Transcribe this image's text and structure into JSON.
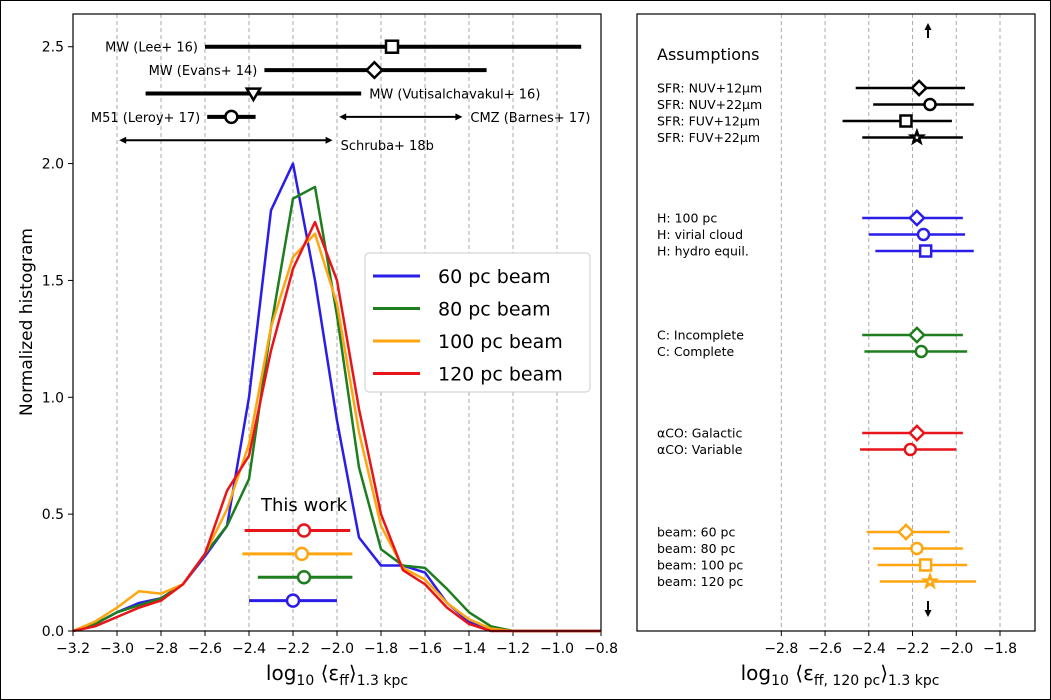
{
  "chart_data": [
    {
      "type": "line",
      "ylabel": "Normalized histogram",
      "xlabel": [
        "log",
        "10",
        " ⟨ε",
        "ff",
        "⟩",
        "1.3 kpc"
      ],
      "xlim": [
        -3.2,
        -0.8
      ],
      "ylim": [
        0,
        2.64
      ],
      "xticks": [
        {
          "value": -3.2,
          "label": "−3.2"
        },
        {
          "value": -3.0,
          "label": "−3.0"
        },
        {
          "value": -2.8,
          "label": "−2.8"
        },
        {
          "value": -2.6,
          "label": "−2.6"
        },
        {
          "value": -2.4,
          "label": "−2.4"
        },
        {
          "value": -2.2,
          "label": "−2.2"
        },
        {
          "value": -2.0,
          "label": "−2.0"
        },
        {
          "value": -1.8,
          "label": "−1.8"
        },
        {
          "value": -1.6,
          "label": "−1.6"
        },
        {
          "value": -1.4,
          "label": "−1.4"
        },
        {
          "value": -1.2,
          "label": "−1.2"
        },
        {
          "value": -1.0,
          "label": "−1.0"
        },
        {
          "value": -0.8,
          "label": "−0.8"
        }
      ],
      "yticks": [
        {
          "value": 0,
          "label": "0.0"
        },
        0.5,
        {
          "value": 1,
          "label": "1.0"
        },
        1.5,
        {
          "value": 2,
          "label": "2.0"
        },
        2.5
      ],
      "grid": "x",
      "legend_position": "center right",
      "x": [
        -3.2,
        -3.1,
        -3.0,
        -2.9,
        -2.8,
        -2.7,
        -2.6,
        -2.5,
        -2.4,
        -2.3,
        -2.2,
        -2.1,
        -2.0,
        -1.9,
        -1.8,
        -1.7,
        -1.6,
        -1.5,
        -1.4,
        -1.3,
        -1.2,
        -1.1,
        -1.0,
        -0.9,
        -0.8
      ],
      "series": [
        {
          "name": "60 pc beam",
          "color": "#2b1de8",
          "values": [
            0,
            0.03,
            0.08,
            0.12,
            0.14,
            0.2,
            0.32,
            0.45,
            1.0,
            1.8,
            2.0,
            1.5,
            0.9,
            0.4,
            0.28,
            0.28,
            0.25,
            0.12,
            0.04,
            0.01,
            0,
            0,
            0,
            0,
            0
          ],
          "estimate": {
            "value": -2.2,
            "low": -2.4,
            "high": -2.0,
            "y": 0.13
          }
        },
        {
          "name": "80 pc beam",
          "color": "#1e7d1e",
          "values": [
            0,
            0.03,
            0.08,
            0.11,
            0.14,
            0.2,
            0.33,
            0.45,
            0.65,
            1.3,
            1.85,
            1.9,
            1.35,
            0.7,
            0.35,
            0.28,
            0.27,
            0.18,
            0.08,
            0.02,
            0,
            0,
            0,
            0,
            0
          ],
          "estimate": {
            "value": -2.15,
            "low": -2.36,
            "high": -1.93,
            "y": 0.23
          }
        },
        {
          "name": "100 pc beam",
          "color": "#ffa510",
          "values": [
            0,
            0.04,
            0.1,
            0.17,
            0.16,
            0.2,
            0.33,
            0.52,
            0.8,
            1.3,
            1.6,
            1.7,
            1.4,
            0.85,
            0.45,
            0.27,
            0.22,
            0.12,
            0.05,
            0.01,
            0,
            0,
            0,
            0,
            0
          ],
          "estimate": {
            "value": -2.16,
            "low": -2.43,
            "high": -1.93,
            "y": 0.33
          }
        },
        {
          "name": "120 pc beam",
          "color": "#e8141a",
          "values": [
            0,
            0.02,
            0.06,
            0.1,
            0.13,
            0.2,
            0.33,
            0.6,
            0.75,
            1.2,
            1.55,
            1.75,
            1.5,
            0.95,
            0.5,
            0.26,
            0.2,
            0.1,
            0.03,
            0,
            0,
            0,
            0,
            0,
            0
          ],
          "estimate": {
            "value": -2.15,
            "low": -2.42,
            "high": -1.94,
            "y": 0.43
          }
        }
      ],
      "this_work_label": "This work",
      "references": [
        {
          "label": "MW (Lee+ 16)",
          "value": -1.75,
          "low": -2.6,
          "high": -0.89,
          "y": 2.5,
          "marker": "square",
          "label_side": "left"
        },
        {
          "label": "MW (Evans+ 14)",
          "value": -1.83,
          "low": -2.33,
          "high": -1.32,
          "y": 2.4,
          "marker": "diamond",
          "label_side": "left"
        },
        {
          "label": "MW (Vutisalchavakul+ 16)",
          "value": -2.38,
          "low": -2.87,
          "high": -1.89,
          "y": 2.3,
          "marker": "triangle-down",
          "label_side": "right"
        },
        {
          "label": "M51 (Leroy+ 17)",
          "value": -2.48,
          "low": -2.59,
          "high": -2.37,
          "y": 2.2,
          "marker": "circle",
          "label_side": "left"
        },
        {
          "label": "CMZ (Barnes+ 17)",
          "low": -1.99,
          "high": -1.43,
          "y": 2.2,
          "label_side": "right"
        },
        {
          "label": "Schruba+ 18b",
          "low": -2.99,
          "high": -2.02,
          "y": 2.1,
          "label_side": "right"
        }
      ]
    },
    {
      "type": "dot",
      "xlabel": [
        "log",
        "10",
        " ⟨ε",
        "ff, 120 pc",
        "⟩",
        "1.3 kpc"
      ],
      "xlim": [
        -3.46,
        -1.64
      ],
      "xticks": [
        {
          "value": -2.8,
          "label": "−2.8"
        },
        {
          "value": -2.6,
          "label": "−2.6"
        },
        {
          "value": -2.4,
          "label": "−2.4"
        },
        {
          "value": -2.2,
          "label": "−2.2"
        },
        {
          "value": -2.0,
          "label": "−2.0"
        },
        {
          "value": -1.8,
          "label": "−1.8"
        }
      ],
      "grid": "x",
      "annotation": "Assumptions",
      "groups": [
        {
          "color": "#000000",
          "rows": [
            {
              "label": "SFR: NUV+12μm",
              "value": -2.17,
              "low": -2.46,
              "high": -1.96,
              "marker": "diamond"
            },
            {
              "label": "SFR: NUV+22μm",
              "value": -2.12,
              "low": -2.38,
              "high": -1.92,
              "marker": "circle"
            },
            {
              "label": "SFR: FUV+12μm",
              "value": -2.23,
              "low": -2.52,
              "high": -2.02,
              "marker": "square"
            },
            {
              "label": "SFR: FUV+22μm",
              "value": -2.18,
              "low": -2.43,
              "high": -1.97,
              "marker": "star"
            }
          ]
        },
        {
          "color": "#2b1de8",
          "rows": [
            {
              "label": "H: 100 pc",
              "value": -2.18,
              "low": -2.43,
              "high": -1.97,
              "marker": "diamond"
            },
            {
              "label": "H: virial cloud",
              "value": -2.15,
              "low": -2.4,
              "high": -1.96,
              "marker": "circle"
            },
            {
              "label": "H: hydro equil.",
              "value": -2.14,
              "low": -2.37,
              "high": -1.92,
              "marker": "square"
            }
          ]
        },
        {
          "color": "#1e7d1e",
          "rows": [
            {
              "label": "C: Incomplete",
              "value": -2.18,
              "low": -2.43,
              "high": -1.97,
              "marker": "diamond"
            },
            {
              "label": "C: Complete",
              "value": -2.16,
              "low": -2.42,
              "high": -1.95,
              "marker": "circle"
            }
          ]
        },
        {
          "color": "#e8141a",
          "rows": [
            {
              "label": "αCO: Galactic",
              "value": -2.18,
              "low": -2.43,
              "high": -1.97,
              "marker": "diamond"
            },
            {
              "label": "αCO: Variable",
              "value": -2.21,
              "low": -2.44,
              "high": -2.0,
              "marker": "circle"
            }
          ]
        },
        {
          "color": "#ffa510",
          "rows": [
            {
              "label": "beam: 60 pc",
              "value": -2.23,
              "low": -2.41,
              "high": -2.03,
              "marker": "diamond"
            },
            {
              "label": "beam: 80 pc",
              "value": -2.18,
              "low": -2.38,
              "high": -1.97,
              "marker": "circle"
            },
            {
              "label": "beam: 100 pc",
              "value": -2.14,
              "low": -2.36,
              "high": -1.95,
              "marker": "square"
            },
            {
              "label": "beam: 120 pc",
              "value": -2.12,
              "low": -2.35,
              "high": -1.91,
              "marker": "star"
            }
          ]
        }
      ]
    }
  ]
}
